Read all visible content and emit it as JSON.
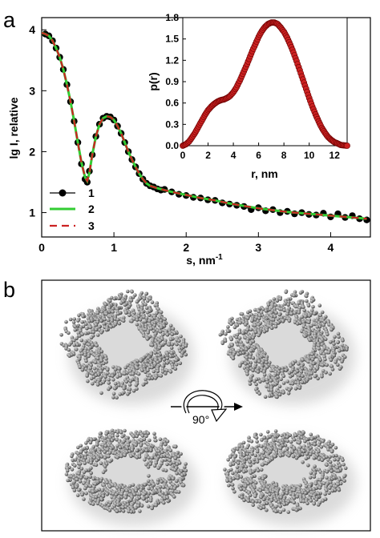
{
  "panels": {
    "a": "a",
    "b": "b"
  },
  "chart_data": [
    {
      "type": "scatter",
      "panel": "a",
      "xlabel_main": "s, nm",
      "xlabel_sup": "-1",
      "ylabel": "lg I, relative",
      "xlim": [
        0,
        4.55
      ],
      "ylim": [
        0.6,
        4.2
      ],
      "x_ticks": [
        0,
        1,
        2,
        3,
        4
      ],
      "y_ticks": [
        1,
        2,
        3,
        4
      ],
      "grid": false,
      "legend_position": "lower-left",
      "series": [
        {
          "name": "1",
          "style": "black-circles",
          "x": [
            0.05,
            0.1,
            0.15,
            0.2,
            0.25,
            0.3,
            0.35,
            0.4,
            0.45,
            0.5,
            0.55,
            0.6,
            0.63,
            0.66,
            0.7,
            0.75,
            0.8,
            0.85,
            0.9,
            0.95,
            1.0,
            1.05,
            1.1,
            1.15,
            1.2,
            1.25,
            1.3,
            1.35,
            1.4,
            1.45,
            1.5,
            1.55,
            1.6,
            1.65,
            1.7,
            1.8,
            1.9,
            2.0,
            2.1,
            2.2,
            2.3,
            2.4,
            2.5,
            2.6,
            2.7,
            2.8,
            2.9,
            3.0,
            3.1,
            3.2,
            3.3,
            3.4,
            3.5,
            3.6,
            3.7,
            3.8,
            3.9,
            4.0,
            4.1,
            4.2,
            4.3,
            4.4,
            4.5
          ],
          "y": [
            3.93,
            3.9,
            3.82,
            3.7,
            3.55,
            3.35,
            3.1,
            2.82,
            2.5,
            2.15,
            1.8,
            1.55,
            1.5,
            1.68,
            1.95,
            2.25,
            2.45,
            2.55,
            2.58,
            2.57,
            2.52,
            2.42,
            2.3,
            2.15,
            2.0,
            1.87,
            1.75,
            1.64,
            1.55,
            1.48,
            1.44,
            1.42,
            1.39,
            1.37,
            1.38,
            1.34,
            1.3,
            1.28,
            1.25,
            1.24,
            1.21,
            1.2,
            1.16,
            1.14,
            1.12,
            1.1,
            1.05,
            1.08,
            1.03,
            1.05,
            1.0,
            1.02,
            0.98,
            1.0,
            0.97,
            0.96,
            0.99,
            0.93,
            0.98,
            0.92,
            0.95,
            0.9,
            0.88
          ]
        },
        {
          "name": "2",
          "style": "green-line",
          "x": [
            0.0,
            0.05,
            0.1,
            0.15,
            0.2,
            0.25,
            0.3,
            0.35,
            0.4,
            0.45,
            0.5,
            0.55,
            0.6,
            0.63,
            0.66,
            0.7,
            0.75,
            0.8,
            0.85,
            0.9,
            0.95,
            1.0,
            1.05,
            1.1,
            1.15,
            1.2,
            1.25,
            1.3,
            1.35,
            1.4,
            1.45,
            1.5,
            1.6,
            1.7,
            1.8,
            2.0,
            2.2,
            2.4,
            2.6,
            2.8,
            3.0,
            3.2,
            3.4,
            3.6,
            3.8,
            4.0,
            4.2,
            4.4,
            4.5
          ],
          "y": [
            3.95,
            3.93,
            3.9,
            3.82,
            3.7,
            3.55,
            3.35,
            3.1,
            2.82,
            2.5,
            2.15,
            1.82,
            1.58,
            1.52,
            1.65,
            1.95,
            2.25,
            2.45,
            2.55,
            2.58,
            2.57,
            2.52,
            2.42,
            2.3,
            2.15,
            2.0,
            1.87,
            1.75,
            1.64,
            1.55,
            1.48,
            1.44,
            1.4,
            1.37,
            1.34,
            1.29,
            1.24,
            1.2,
            1.15,
            1.11,
            1.07,
            1.04,
            1.01,
            0.99,
            0.97,
            0.95,
            0.93,
            0.91,
            0.9
          ]
        },
        {
          "name": "3",
          "style": "red-dashed",
          "x": [
            0.0,
            0.05,
            0.1,
            0.15,
            0.2,
            0.25,
            0.3,
            0.35,
            0.4,
            0.45,
            0.5,
            0.55,
            0.6,
            0.63,
            0.66,
            0.7,
            0.75,
            0.8,
            0.85,
            0.9,
            0.95,
            1.0,
            1.05,
            1.1,
            1.15,
            1.2,
            1.25,
            1.3,
            1.35,
            1.4,
            1.45,
            1.5,
            1.6,
            1.7,
            1.8,
            2.0,
            2.2,
            2.4,
            2.6,
            2.8,
            3.0,
            3.2,
            3.4,
            3.6,
            3.8,
            4.0,
            4.2,
            4.4,
            4.5
          ],
          "y": [
            3.95,
            3.93,
            3.9,
            3.82,
            3.7,
            3.55,
            3.35,
            3.1,
            2.82,
            2.5,
            2.15,
            1.82,
            1.58,
            1.52,
            1.65,
            1.95,
            2.25,
            2.45,
            2.55,
            2.58,
            2.57,
            2.52,
            2.42,
            2.3,
            2.15,
            2.0,
            1.87,
            1.75,
            1.64,
            1.55,
            1.48,
            1.44,
            1.4,
            1.37,
            1.34,
            1.29,
            1.24,
            1.2,
            1.15,
            1.11,
            1.07,
            1.04,
            1.01,
            0.99,
            0.97,
            0.95,
            0.93,
            0.91,
            0.9
          ]
        }
      ],
      "colors": {
        "data": "#000000",
        "fit2": "#33cc33",
        "fit3": "#cc2222"
      }
    },
    {
      "type": "line",
      "panel": "a-inset",
      "xlabel": "r, nm",
      "ylabel": "p(r)",
      "xlim": [
        0,
        13
      ],
      "ylim": [
        0,
        1.8
      ],
      "x_ticks": [
        0,
        2,
        4,
        6,
        8,
        10,
        12
      ],
      "y_ticks": [
        "0.0",
        "0.3",
        "0.6",
        "0.9",
        "1.2",
        "1.5",
        "1.8"
      ],
      "grid": false,
      "series": [
        {
          "style": "red-circles",
          "x": [
            0,
            0.25,
            0.5,
            0.75,
            1,
            1.25,
            1.5,
            1.75,
            2,
            2.25,
            2.5,
            2.75,
            3,
            3.25,
            3.5,
            3.75,
            4,
            4.25,
            4.5,
            4.75,
            5,
            5.25,
            5.5,
            5.75,
            6,
            6.25,
            6.5,
            6.75,
            7,
            7.25,
            7.5,
            7.75,
            8,
            8.25,
            8.5,
            8.75,
            9,
            9.25,
            9.5,
            9.75,
            10,
            10.25,
            10.5,
            10.75,
            11,
            11.25,
            11.5,
            11.75,
            12,
            12.25,
            12.5,
            12.75,
            13
          ],
          "y": [
            0,
            0.02,
            0.06,
            0.12,
            0.19,
            0.27,
            0.35,
            0.43,
            0.5,
            0.55,
            0.59,
            0.62,
            0.64,
            0.65,
            0.67,
            0.7,
            0.75,
            0.82,
            0.91,
            1.01,
            1.11,
            1.22,
            1.33,
            1.43,
            1.53,
            1.61,
            1.67,
            1.71,
            1.73,
            1.73,
            1.71,
            1.66,
            1.6,
            1.52,
            1.42,
            1.31,
            1.19,
            1.06,
            0.93,
            0.8,
            0.67,
            0.55,
            0.44,
            0.34,
            0.25,
            0.18,
            0.12,
            0.08,
            0.05,
            0.03,
            0.01,
            0.005,
            0
          ]
        }
      ],
      "colors": {
        "fill": "#cc2222",
        "edge": "#6a0000",
        "line": "#8a1010"
      }
    }
  ],
  "models": {
    "rotation_label": "90°",
    "bead_color": "#8c8c8c",
    "bead_edge": "#4a4a4a"
  }
}
